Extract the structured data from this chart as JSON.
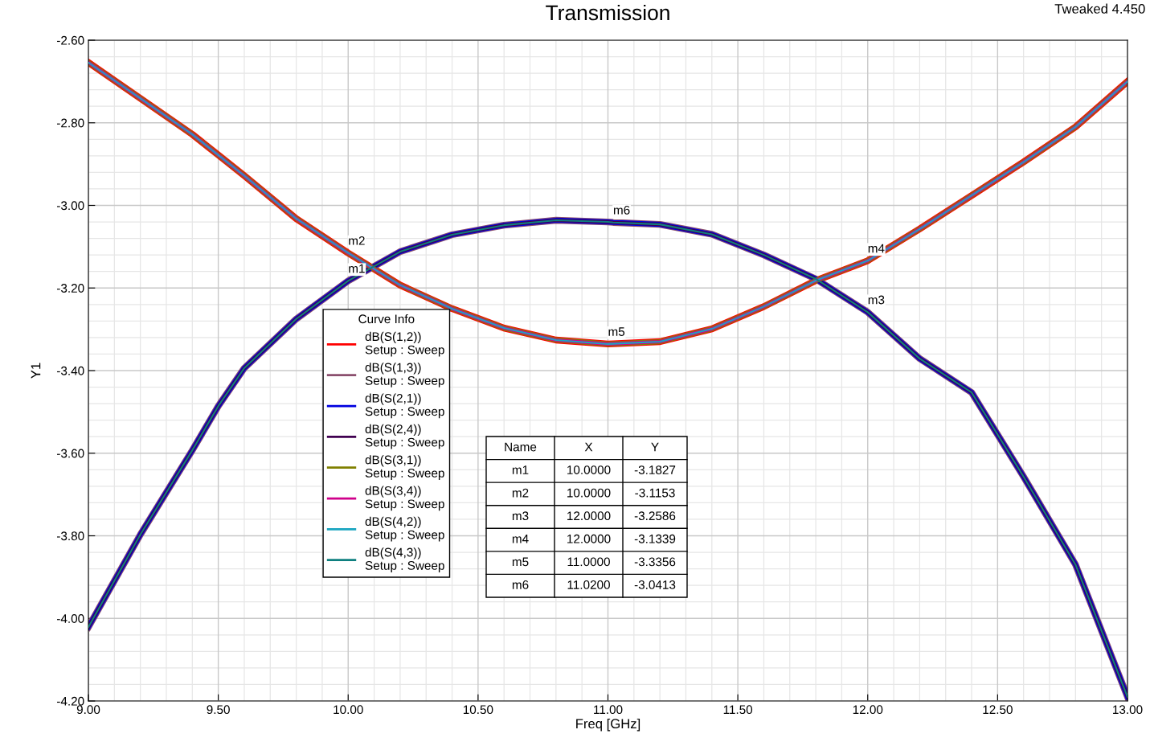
{
  "chart_data": {
    "type": "line",
    "title": "Transmission",
    "xlabel": "Freq [GHz]",
    "ylabel": "Y1",
    "legend_title": "Curve Info",
    "x": [
      9.0,
      9.2,
      9.4,
      9.5,
      9.6,
      9.8,
      10.0,
      10.2,
      10.4,
      10.6,
      10.8,
      11.0,
      11.02,
      11.2,
      11.4,
      11.6,
      11.8,
      12.0,
      12.2,
      12.4,
      12.6,
      12.8,
      13.0
    ],
    "series": [
      {
        "name": "dB(S(1,2))\nSetup : Sweep",
        "color": "#ff0000",
        "values": [
          -2.654,
          -2.741,
          -2.828,
          -2.878,
          -2.928,
          -3.032,
          -3.1153,
          -3.193,
          -3.25,
          -3.297,
          -3.326,
          -3.3356,
          -3.335,
          -3.33,
          -3.299,
          -3.245,
          -3.182,
          -3.1339,
          -3.057,
          -2.976,
          -2.895,
          -2.81,
          -2.7
        ]
      },
      {
        "name": "dB(S(1,3))\nSetup : Sweep",
        "color": "#8b4f6e",
        "values": [
          -4.021,
          -3.797,
          -3.593,
          -3.486,
          -3.394,
          -3.275,
          -3.1827,
          -3.112,
          -3.071,
          -3.048,
          -3.036,
          -3.04,
          -3.0413,
          -3.046,
          -3.07,
          -3.12,
          -3.178,
          -3.2586,
          -3.371,
          -3.453,
          -3.657,
          -3.87,
          -4.19
        ]
      },
      {
        "name": "dB(S(2,1))\nSetup : Sweep",
        "color": "#0000e0",
        "values": [
          -4.021,
          -3.797,
          -3.593,
          -3.486,
          -3.394,
          -3.275,
          -3.1827,
          -3.112,
          -3.071,
          -3.048,
          -3.036,
          -3.04,
          -3.0413,
          -3.046,
          -3.07,
          -3.12,
          -3.178,
          -3.2586,
          -3.371,
          -3.453,
          -3.657,
          -3.87,
          -4.19
        ]
      },
      {
        "name": "dB(S(2,4))\nSetup : Sweep",
        "color": "#400050",
        "values": [
          -4.021,
          -3.797,
          -3.593,
          -3.486,
          -3.394,
          -3.275,
          -3.1827,
          -3.112,
          -3.071,
          -3.048,
          -3.036,
          -3.04,
          -3.0413,
          -3.046,
          -3.07,
          -3.12,
          -3.178,
          -3.2586,
          -3.371,
          -3.453,
          -3.657,
          -3.87,
          -4.19
        ]
      },
      {
        "name": "dB(S(3,1))\nSetup : Sweep",
        "color": "#808000",
        "values": [
          -2.654,
          -2.741,
          -2.828,
          -2.878,
          -2.928,
          -3.032,
          -3.1153,
          -3.193,
          -3.25,
          -3.297,
          -3.326,
          -3.3356,
          -3.335,
          -3.33,
          -3.299,
          -3.245,
          -3.182,
          -3.1339,
          -3.057,
          -2.976,
          -2.895,
          -2.81,
          -2.7
        ]
      },
      {
        "name": "dB(S(3,4))\nSetup : Sweep",
        "color": "#d0008a",
        "values": [
          -2.654,
          -2.741,
          -2.828,
          -2.878,
          -2.928,
          -3.032,
          -3.1153,
          -3.193,
          -3.25,
          -3.297,
          -3.326,
          -3.3356,
          -3.335,
          -3.33,
          -3.299,
          -3.245,
          -3.182,
          -3.1339,
          -3.057,
          -2.976,
          -2.895,
          -2.81,
          -2.7
        ]
      },
      {
        "name": "dB(S(4,2))\nSetup : Sweep",
        "color": "#1aa5c0",
        "values": [
          -2.654,
          -2.741,
          -2.828,
          -2.878,
          -2.928,
          -3.032,
          -3.1153,
          -3.193,
          -3.25,
          -3.297,
          -3.326,
          -3.3356,
          -3.335,
          -3.33,
          -3.299,
          -3.245,
          -3.182,
          -3.1339,
          -3.057,
          -2.976,
          -2.895,
          -2.81,
          -2.7
        ]
      },
      {
        "name": "dB(S(4,3))\nSetup : Sweep",
        "color": "#0e7f7f",
        "values": [
          -4.021,
          -3.797,
          -3.593,
          -3.486,
          -3.394,
          -3.275,
          -3.1827,
          -3.112,
          -3.071,
          -3.048,
          -3.036,
          -3.04,
          -3.0413,
          -3.046,
          -3.07,
          -3.12,
          -3.178,
          -3.2586,
          -3.371,
          -3.453,
          -3.657,
          -3.87,
          -4.19
        ]
      }
    ],
    "xlim": [
      9.0,
      13.0
    ],
    "ylim": [
      -4.2,
      -2.6
    ],
    "xticks": [
      {
        "value": 9.0,
        "label": "9.00"
      },
      {
        "value": 9.5,
        "label": "9.50"
      },
      {
        "value": 10.0,
        "label": "10.00"
      },
      {
        "value": 10.5,
        "label": "10.50"
      },
      {
        "value": 11.0,
        "label": "11.00"
      },
      {
        "value": 11.5,
        "label": "11.50"
      },
      {
        "value": 12.0,
        "label": "12.00"
      },
      {
        "value": 12.5,
        "label": "12.50"
      },
      {
        "value": 13.0,
        "label": "13.00"
      }
    ],
    "yticks": [
      {
        "value": -4.2,
        "label": "-4.20"
      },
      {
        "value": -4.0,
        "label": "-4.00"
      },
      {
        "value": -3.8,
        "label": "-3.80"
      },
      {
        "value": -3.6,
        "label": "-3.60"
      },
      {
        "value": -3.4,
        "label": "-3.40"
      },
      {
        "value": -3.2,
        "label": "-3.20"
      },
      {
        "value": -3.0,
        "label": "-3.00"
      },
      {
        "value": -2.8,
        "label": "-2.80"
      },
      {
        "value": -2.6,
        "label": "-2.60"
      }
    ],
    "grid": true,
    "legend": "left",
    "marker": "none",
    "line_style": "solid",
    "annotations": [
      "Tweaked 4.450",
      {
        "text": "m1",
        "x": 10.0,
        "y": -3.1827
      },
      {
        "text": "m2",
        "x": 10.0,
        "y": -3.1153
      },
      {
        "text": "m3",
        "x": 12.0,
        "y": -3.2586
      },
      {
        "text": "m4",
        "x": 12.0,
        "y": -3.1339
      },
      {
        "text": "m5",
        "x": 11.0,
        "y": -3.3356
      },
      {
        "text": "m6",
        "x": 11.02,
        "y": -3.0413
      },
      "Name",
      "X",
      "Y",
      "m1",
      "10.0000",
      "-3.1827",
      "m2",
      "10.0000",
      "-3.1153",
      "m3",
      "12.0000",
      "-3.2586",
      "m4",
      "12.0000",
      "-3.1339",
      "m5",
      "11.0000",
      "-3.3356",
      "m6",
      "11.0200",
      "-3.0413"
    ]
  }
}
